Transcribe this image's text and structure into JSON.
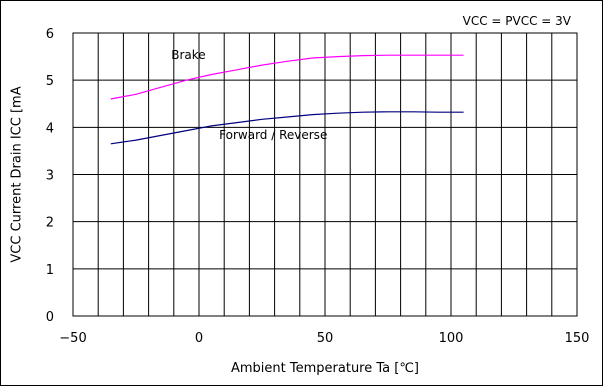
{
  "chart_data": {
    "type": "line",
    "title": "",
    "condition_label": "VCC = PVCC =  3V",
    "xlabel": "Ambient Temperature Ta [℃]",
    "ylabel": "VCC Current Drain ICC [mA",
    "xlim": [
      -50,
      150
    ],
    "ylim": [
      0,
      6
    ],
    "x_ticks": [
      -50,
      0,
      50,
      100,
      150
    ],
    "x_tick_labels": [
      "−50",
      "0",
      "50",
      "100",
      "150"
    ],
    "y_ticks": [
      0,
      1,
      2,
      3,
      4,
      5,
      6
    ],
    "y_tick_labels": [
      "0",
      "1",
      "2",
      "3",
      "4",
      "5",
      "6"
    ],
    "grid": true,
    "series": [
      {
        "name": "Brake",
        "color": "#ff00ff",
        "x": [
          -35,
          -25,
          -15,
          -5,
          5,
          15,
          25,
          35,
          45,
          55,
          65,
          75,
          85,
          95,
          105
        ],
        "y": [
          4.6,
          4.7,
          4.85,
          5.0,
          5.12,
          5.22,
          5.32,
          5.4,
          5.47,
          5.5,
          5.52,
          5.53,
          5.53,
          5.53,
          5.53
        ]
      },
      {
        "name": "Forward / Reverse",
        "color": "#000080",
        "x": [
          -35,
          -25,
          -15,
          -5,
          5,
          15,
          25,
          35,
          45,
          55,
          65,
          75,
          85,
          95,
          105
        ],
        "y": [
          3.65,
          3.73,
          3.83,
          3.93,
          4.03,
          4.1,
          4.17,
          4.22,
          4.27,
          4.3,
          4.32,
          4.33,
          4.33,
          4.32,
          4.32
        ]
      }
    ]
  }
}
